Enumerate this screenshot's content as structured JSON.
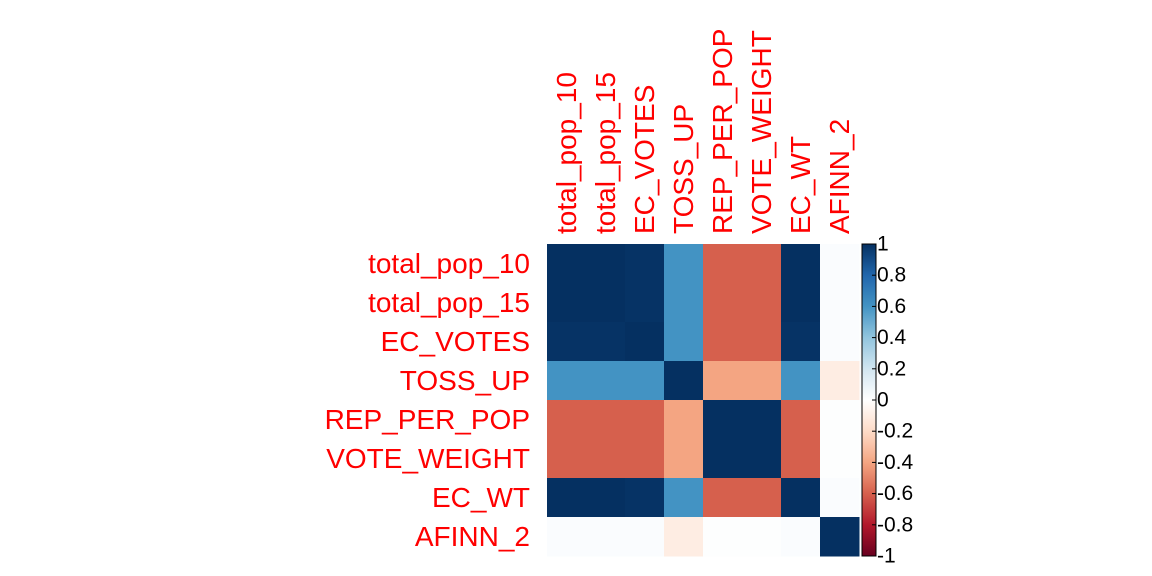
{
  "chart_data": {
    "type": "heatmap",
    "title": "",
    "row_labels": [
      "total_pop_10",
      "total_pop_15",
      "EC_VOTES",
      "TOSS_UP",
      "REP_PER_POP",
      "VOTE_WEIGHT",
      "EC_WT",
      "AFINN_2"
    ],
    "col_labels": [
      "total_pop_10",
      "total_pop_15",
      "EC_VOTES",
      "TOSS_UP",
      "REP_PER_POP",
      "VOTE_WEIGHT",
      "EC_WT",
      "AFINN_2"
    ],
    "matrix": [
      [
        1.0,
        1.0,
        0.99,
        0.6,
        -0.6,
        -0.6,
        1.0,
        0.02
      ],
      [
        1.0,
        1.0,
        0.99,
        0.6,
        -0.6,
        -0.6,
        1.0,
        0.02
      ],
      [
        0.99,
        0.99,
        1.0,
        0.6,
        -0.6,
        -0.6,
        0.99,
        0.02
      ],
      [
        0.6,
        0.6,
        0.6,
        1.0,
        -0.4,
        -0.4,
        0.6,
        -0.1
      ],
      [
        -0.6,
        -0.6,
        -0.6,
        -0.4,
        1.0,
        1.0,
        -0.6,
        0.01
      ],
      [
        -0.6,
        -0.6,
        -0.6,
        -0.4,
        1.0,
        1.0,
        -0.6,
        0.01
      ],
      [
        1.0,
        1.0,
        0.99,
        0.6,
        -0.6,
        -0.6,
        1.0,
        0.02
      ],
      [
        0.02,
        0.02,
        0.02,
        -0.1,
        0.01,
        0.01,
        0.02,
        1.0
      ]
    ],
    "color_range": [
      -1,
      1
    ],
    "color_scale": {
      "negative": "#67001f",
      "zero": "#ffffff",
      "positive": "#053061"
    },
    "legend": {
      "position": "right",
      "ticks": [
        "1",
        "0.8",
        "0.6",
        "0.4",
        "0.2",
        "0",
        "-0.2",
        "-0.4",
        "-0.6",
        "-0.8",
        "-1"
      ],
      "tick_values": [
        1,
        0.8,
        0.6,
        0.4,
        0.2,
        0,
        -0.2,
        -0.4,
        -0.6,
        -0.8,
        -1
      ]
    },
    "label_color": "#ff0000"
  }
}
